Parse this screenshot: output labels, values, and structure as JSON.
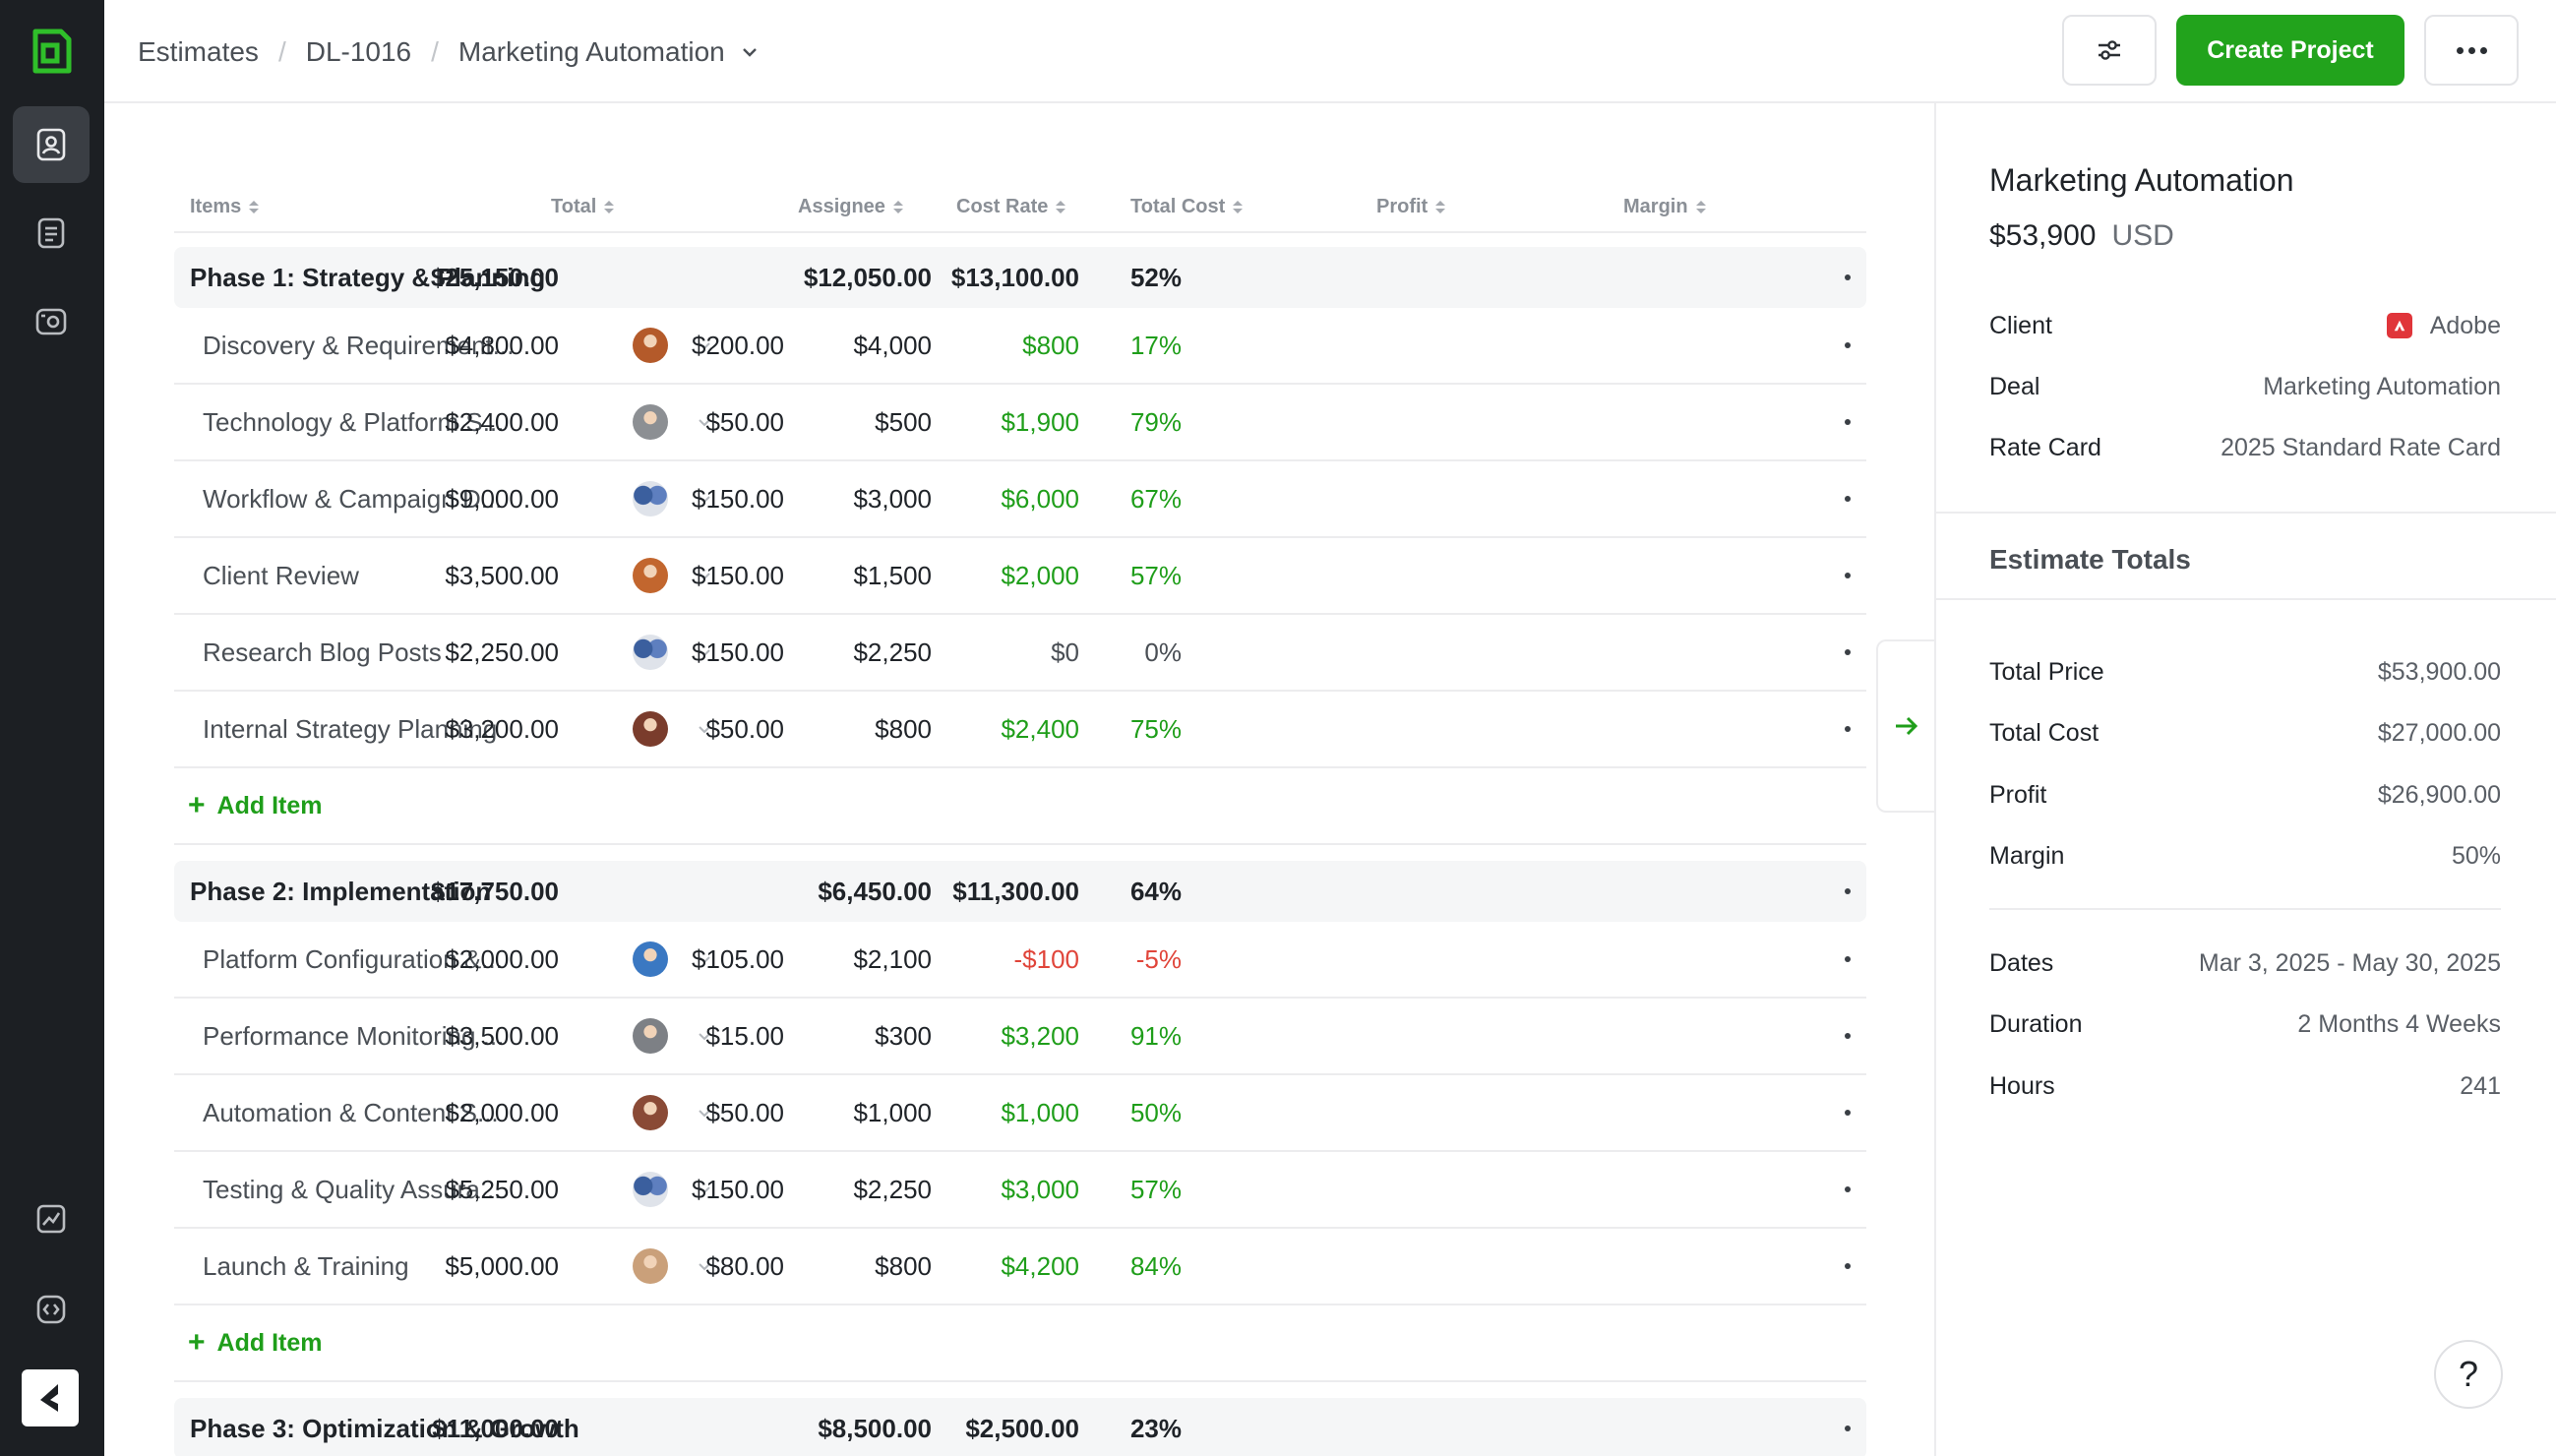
{
  "breadcrumb": {
    "root": "Estimates",
    "deal_id": "DL-1016",
    "current": "Marketing Automation"
  },
  "toolbar": {
    "create_label": "Create Project"
  },
  "columns": [
    "Items",
    "Total",
    "Assignee",
    "Cost Rate",
    "Total Cost",
    "Profit",
    "Margin"
  ],
  "add_item_label": "Add Item",
  "phases": [
    {
      "name": "Phase 1: Strategy & Planning",
      "total": "$25,150.00",
      "total_cost": "$12,050.00",
      "profit": "$13,100.00",
      "margin": "52%",
      "items": [
        {
          "name": "Discovery & Requirement...",
          "total": "$4,800.00",
          "cost_rate": "$200.00",
          "total_cost": "$4,000",
          "profit": "$800",
          "margin": "17%",
          "tone": "pos",
          "avatar": "single"
        },
        {
          "name": "Technology & Platform S...",
          "total": "$2,400.00",
          "cost_rate": "$50.00",
          "total_cost": "$500",
          "profit": "$1,900",
          "margin": "79%",
          "tone": "pos",
          "avatar": "single"
        },
        {
          "name": "Workflow & Campaign D...",
          "total": "$9,000.00",
          "cost_rate": "$150.00",
          "total_cost": "$3,000",
          "profit": "$6,000",
          "margin": "67%",
          "tone": "pos",
          "avatar": "group"
        },
        {
          "name": "Client Review",
          "total": "$3,500.00",
          "cost_rate": "$150.00",
          "total_cost": "$1,500",
          "profit": "$2,000",
          "margin": "57%",
          "tone": "pos",
          "avatar": "single"
        },
        {
          "name": "Research Blog Posts",
          "total": "$2,250.00",
          "cost_rate": "$150.00",
          "total_cost": "$2,250",
          "profit": "$0",
          "margin": "0%",
          "tone": "neu",
          "avatar": "group"
        },
        {
          "name": "Internal Strategy Planning",
          "total": "$3,200.00",
          "cost_rate": "$50.00",
          "total_cost": "$800",
          "profit": "$2,400",
          "margin": "75%",
          "tone": "pos",
          "avatar": "single"
        }
      ]
    },
    {
      "name": "Phase 2: Implementation",
      "total": "$17,750.00",
      "total_cost": "$6,450.00",
      "profit": "$11,300.00",
      "margin": "64%",
      "items": [
        {
          "name": "Platform Configuration &...",
          "total": "$2,000.00",
          "cost_rate": "$105.00",
          "total_cost": "$2,100",
          "profit": "-$100",
          "margin": "-5%",
          "tone": "neg",
          "avatar": "single"
        },
        {
          "name": "Performance Monitoring ...",
          "total": "$3,500.00",
          "cost_rate": "$15.00",
          "total_cost": "$300",
          "profit": "$3,200",
          "margin": "91%",
          "tone": "pos",
          "avatar": "single"
        },
        {
          "name": "Automation & Content S...",
          "total": "$2,000.00",
          "cost_rate": "$50.00",
          "total_cost": "$1,000",
          "profit": "$1,000",
          "margin": "50%",
          "tone": "pos",
          "avatar": "single"
        },
        {
          "name": "Testing & Quality Assura...",
          "total": "$5,250.00",
          "cost_rate": "$150.00",
          "total_cost": "$2,250",
          "profit": "$3,000",
          "margin": "57%",
          "tone": "pos",
          "avatar": "group"
        },
        {
          "name": "Launch & Training",
          "total": "$5,000.00",
          "cost_rate": "$80.00",
          "total_cost": "$800",
          "profit": "$4,200",
          "margin": "84%",
          "tone": "pos",
          "avatar": "single"
        }
      ]
    },
    {
      "name": "Phase 3: Optimization & Growth",
      "total": "$11,000.00",
      "total_cost": "$8,500.00",
      "profit": "$2,500.00",
      "margin": "23%",
      "items": []
    }
  ],
  "panel": {
    "title": "Marketing Automation",
    "amount": "$53,900",
    "currency": "USD",
    "details": [
      {
        "key": "Client",
        "value": "Adobe"
      },
      {
        "key": "Deal",
        "value": "Marketing Automation"
      },
      {
        "key": "Rate Card",
        "value": "2025 Standard Rate Card"
      }
    ],
    "totals_heading": "Estimate Totals",
    "totals": [
      {
        "key": "Total Price",
        "value": "$53,900.00"
      },
      {
        "key": "Total Cost",
        "value": "$27,000.00"
      },
      {
        "key": "Profit",
        "value": "$26,900.00"
      },
      {
        "key": "Margin",
        "value": "50%"
      }
    ],
    "schedule": [
      {
        "key": "Dates",
        "value": "Mar 3, 2025 - May 30, 2025"
      },
      {
        "key": "Duration",
        "value": "2 Months 4 Weeks"
      },
      {
        "key": "Hours",
        "value": "241"
      }
    ]
  },
  "help_label": "?",
  "colors": {
    "accent": "#22a31c",
    "positive": "#1f9e1a",
    "negative": "#e0453a",
    "rail": "#1c1f23"
  }
}
